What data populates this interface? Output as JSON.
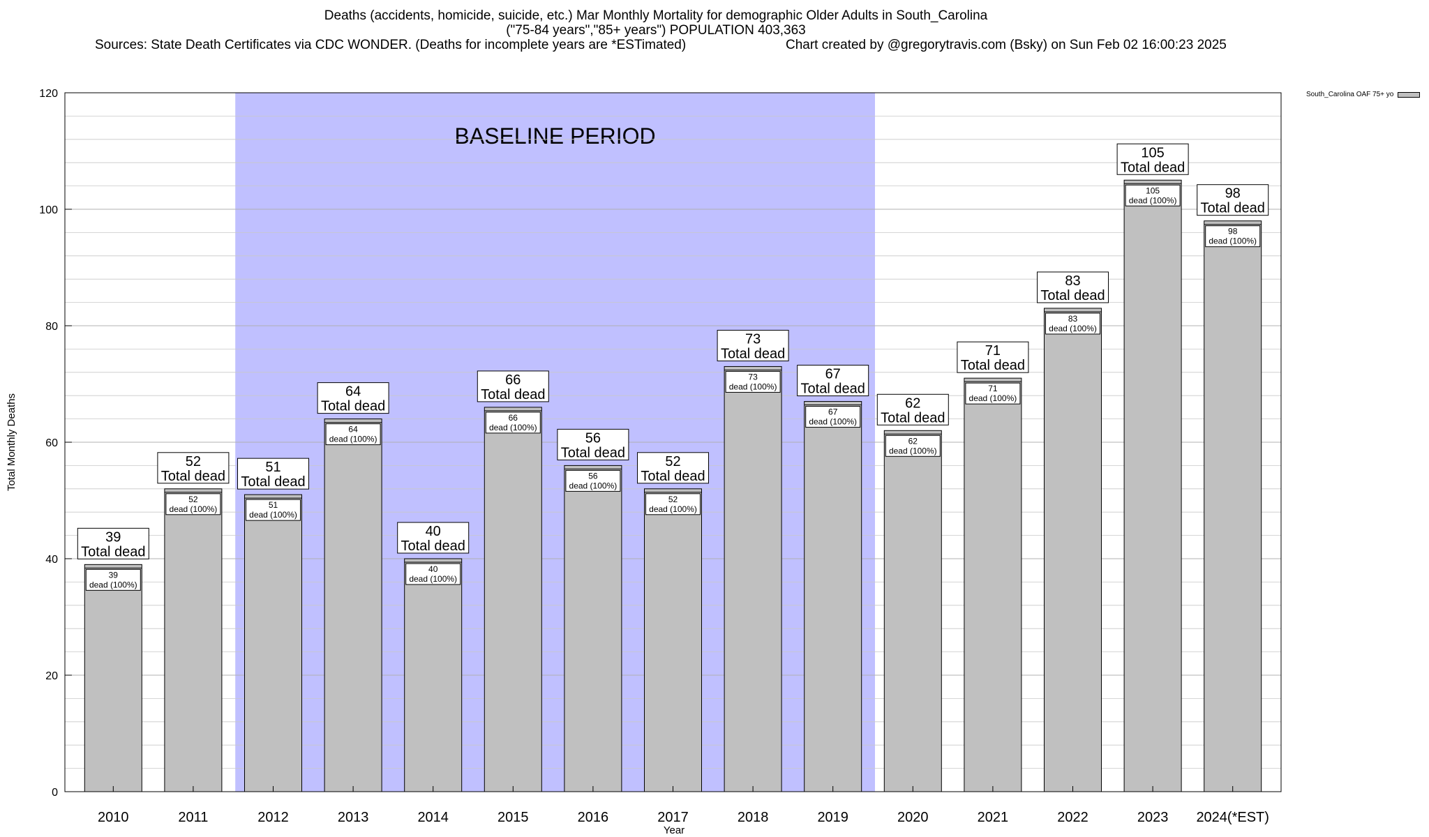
{
  "header": {
    "title_line1": "Deaths (accidents, homicide, suicide, etc.) Mar Monthly Mortality for demographic Older Adults in South_Carolina",
    "title_line2": "(\"75-84 years\",\"85+ years\") POPULATION 403,363",
    "sources": "Sources: State Death Certificates via CDC WONDER. (Deaths for incomplete years are *ESTimated)",
    "credit": "Chart created by @gregorytravis.com (Bsky) on Sun Feb 02 16:00:23 2025"
  },
  "chart_data": {
    "type": "bar",
    "title": "Deaths (accidents, homicide, suicide, etc.) Mar Monthly Mortality for demographic Older Adults in South_Carolina",
    "xlabel": "Year",
    "ylabel": "Total Monthly Deaths",
    "ylim": [
      0,
      120
    ],
    "yticks": [
      0,
      20,
      40,
      60,
      80,
      100,
      120
    ],
    "grid": true,
    "legend_position": "top-right",
    "categories": [
      "2010",
      "2011",
      "2012",
      "2013",
      "2014",
      "2015",
      "2016",
      "2017",
      "2018",
      "2019",
      "2020",
      "2021",
      "2022",
      "2023",
      "2024(*EST)"
    ],
    "series": [
      {
        "name": "South_Carolina OAF 75+ yo",
        "values": [
          39,
          52,
          51,
          64,
          40,
          66,
          56,
          52,
          73,
          67,
          62,
          71,
          83,
          105,
          98
        ],
        "color": "#c0c0c0"
      }
    ],
    "total_label": "Total dead",
    "inner_label": "dead (100%)",
    "baseline": {
      "label": "BASELINE PERIOD",
      "start": "2012",
      "end": "2019",
      "color": "#c0c0ff"
    }
  }
}
